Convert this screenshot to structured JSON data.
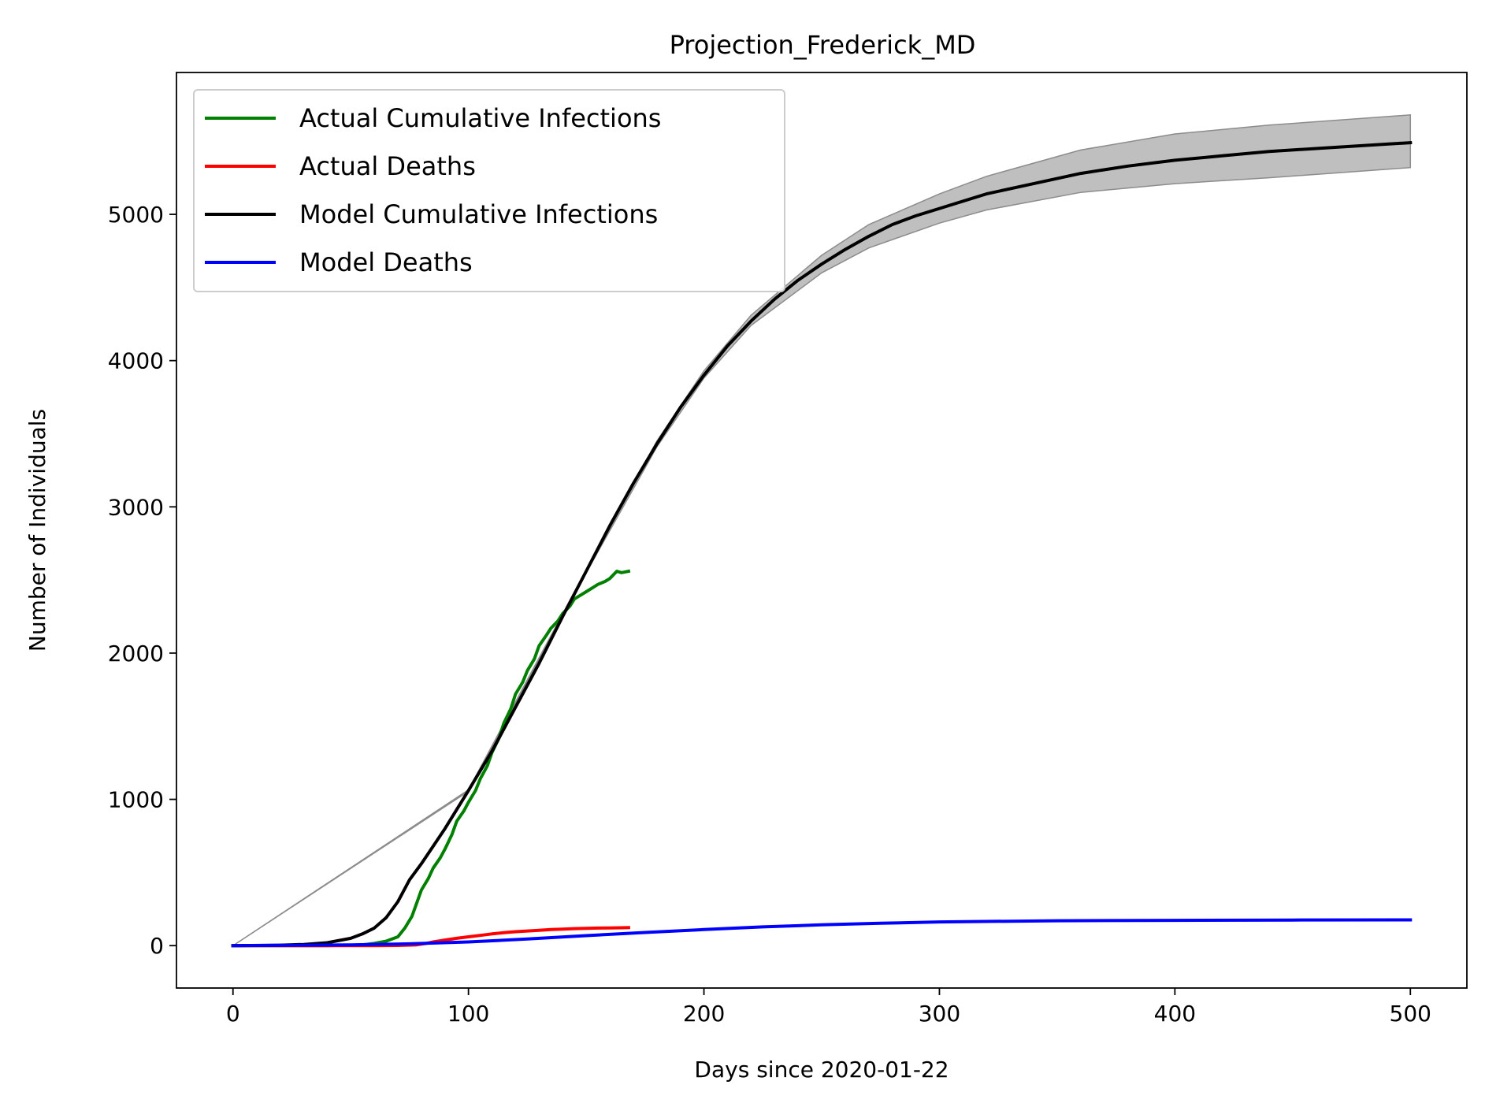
{
  "chart_data": {
    "type": "line",
    "title": "Projection_Frederick_MD",
    "xlabel": "Days since 2020-01-22",
    "ylabel": "Number of Individuals",
    "xlim": [
      -24,
      524
    ],
    "ylim": [
      -290,
      5970
    ],
    "x_ticks": [
      0,
      100,
      200,
      300,
      400,
      500
    ],
    "y_ticks": [
      0,
      1000,
      2000,
      3000,
      4000,
      5000
    ],
    "x_tick_labels": [
      "0",
      "100",
      "200",
      "300",
      "400",
      "500"
    ],
    "y_tick_labels": [
      "0",
      "1000",
      "2000",
      "3000",
      "4000",
      "5000"
    ],
    "grid": false,
    "legend_position": "upper-left",
    "legend": [
      {
        "label": "Actual Cumulative Infections",
        "color": "#008000"
      },
      {
        "label": "Actual Deaths",
        "color": "#ff0000"
      },
      {
        "label": "Model Cumulative Infections",
        "color": "#000000"
      },
      {
        "label": "Model Deaths",
        "color": "#0000ff"
      }
    ],
    "series": [
      {
        "name": "Actual Cumulative Infections",
        "color": "#008000",
        "x": [
          0,
          20,
          40,
          55,
          60,
          65,
          70,
          73,
          76,
          78,
          80,
          83,
          85,
          88,
          90,
          93,
          95,
          98,
          100,
          103,
          105,
          108,
          110,
          113,
          115,
          118,
          120,
          123,
          125,
          128,
          130,
          133,
          135,
          138,
          140,
          143,
          145,
          148,
          150,
          153,
          155,
          158,
          160,
          163,
          165,
          168
        ],
        "y": [
          0,
          0,
          0,
          5,
          15,
          30,
          60,
          120,
          200,
          290,
          380,
          460,
          530,
          600,
          660,
          760,
          850,
          920,
          980,
          1060,
          1140,
          1230,
          1320,
          1420,
          1520,
          1620,
          1720,
          1800,
          1880,
          1960,
          2050,
          2120,
          2170,
          2220,
          2270,
          2320,
          2370,
          2400,
          2420,
          2450,
          2470,
          2490,
          2510,
          2560,
          2550,
          2560
        ]
      },
      {
        "name": "Actual Deaths",
        "color": "#ff0000",
        "x": [
          0,
          60,
          70,
          78,
          82,
          85,
          90,
          95,
          100,
          105,
          110,
          115,
          120,
          125,
          130,
          135,
          140,
          145,
          150,
          155,
          160,
          165,
          168
        ],
        "y": [
          0,
          0,
          1,
          5,
          15,
          25,
          38,
          50,
          60,
          70,
          80,
          88,
          95,
          100,
          105,
          110,
          113,
          116,
          118,
          120,
          121,
          122,
          123
        ]
      },
      {
        "name": "Model Cumulative Infections",
        "color": "#000000",
        "x": [
          0,
          20,
          30,
          40,
          50,
          55,
          60,
          65,
          70,
          75,
          80,
          90,
          100,
          110,
          120,
          130,
          140,
          150,
          160,
          170,
          180,
          190,
          200,
          210,
          220,
          230,
          240,
          250,
          260,
          270,
          280,
          290,
          300,
          320,
          340,
          360,
          380,
          400,
          420,
          440,
          460,
          480,
          500
        ],
        "y": [
          0,
          3,
          8,
          20,
          50,
          80,
          120,
          190,
          300,
          450,
          560,
          800,
          1060,
          1330,
          1630,
          1930,
          2250,
          2560,
          2870,
          3160,
          3430,
          3680,
          3900,
          4100,
          4270,
          4420,
          4550,
          4660,
          4760,
          4850,
          4930,
          4990,
          5040,
          5140,
          5210,
          5280,
          5330,
          5370,
          5400,
          5430,
          5450,
          5470,
          5490
        ]
      },
      {
        "name": "Model Deaths",
        "color": "#0000ff",
        "x": [
          0,
          50,
          75,
          100,
          125,
          150,
          175,
          200,
          225,
          250,
          275,
          300,
          350,
          400,
          450,
          500
        ],
        "y": [
          0,
          5,
          12,
          25,
          45,
          68,
          90,
          110,
          128,
          142,
          153,
          162,
          170,
          173,
          175,
          176
        ]
      }
    ],
    "confidence_band": {
      "series": "Model Cumulative Infections",
      "color": "#bfbfbf",
      "x": [
        0,
        100,
        150,
        180,
        200,
        220,
        250,
        270,
        300,
        320,
        360,
        400,
        440,
        500
      ],
      "lower": [
        0,
        1055,
        2550,
        3410,
        3880,
        4240,
        4600,
        4770,
        4940,
        5030,
        5150,
        5210,
        5250,
        5320
      ],
      "upper": [
        0,
        1065,
        2570,
        3450,
        3930,
        4310,
        4720,
        4930,
        5140,
        5260,
        5440,
        5550,
        5610,
        5680
      ]
    }
  }
}
